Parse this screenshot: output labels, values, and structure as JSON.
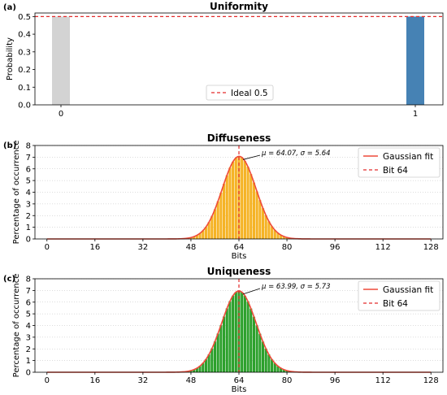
{
  "chart_data": [
    {
      "type": "bar",
      "panel_label": "(a)",
      "title": "Uniformity",
      "xlabel": "",
      "ylabel": "Probability",
      "categories": [
        "0",
        "1"
      ],
      "values": [
        0.5,
        0.5
      ],
      "bar_colors": [
        "#d3d3d3",
        "#4682b4"
      ],
      "ylim": [
        0,
        0.52
      ],
      "yticks": [
        "0.0",
        "0.1",
        "0.2",
        "0.3",
        "0.4",
        "0.5"
      ],
      "reference_line": {
        "value": 0.5,
        "label": "Ideal 0.5",
        "color": "#e32b2b",
        "style": "dashed"
      },
      "legend_position": "bottom-center",
      "grid": false
    },
    {
      "type": "bar",
      "panel_label": "(b)",
      "title": "Diffuseness",
      "xlabel": "Bits",
      "ylabel": "Percentage of occurrence",
      "bar_color": "#f5b325",
      "histogram": {
        "mean": 64.07,
        "std": 5.64,
        "x_from": 44,
        "x_to": 84
      },
      "xlim": [
        -4,
        132
      ],
      "ylim": [
        0,
        8
      ],
      "xticks": [
        "0",
        "16",
        "32",
        "48",
        "64",
        "80",
        "96",
        "112",
        "128"
      ],
      "yticks": [
        "0",
        "1",
        "2",
        "3",
        "4",
        "5",
        "6",
        "7",
        "8"
      ],
      "annotation": "μ = 64.07,  σ = 5.64",
      "fit_series": {
        "name": "Gaussian fit",
        "color": "#ee4a3a"
      },
      "vline": {
        "value": 64,
        "name": "Bit 64",
        "color": "#e32b2b"
      },
      "legend_position": "top-right",
      "grid": "horizontal dotted"
    },
    {
      "type": "bar",
      "panel_label": "(c)",
      "title": "Uniqueness",
      "xlabel": "Bits",
      "ylabel": "Percentage of occurrence",
      "bar_color": "#2ca02c",
      "histogram": {
        "mean": 63.99,
        "std": 5.73,
        "x_from": 44,
        "x_to": 84
      },
      "xlim": [
        -4,
        132
      ],
      "ylim": [
        0,
        8
      ],
      "xticks": [
        "0",
        "16",
        "32",
        "48",
        "64",
        "80",
        "96",
        "112",
        "128"
      ],
      "yticks": [
        "0",
        "1",
        "2",
        "3",
        "4",
        "5",
        "6",
        "7",
        "8"
      ],
      "annotation": "μ = 63.99,  σ = 5.73",
      "fit_series": {
        "name": "Gaussian fit",
        "color": "#ee4a3a"
      },
      "vline": {
        "value": 64,
        "name": "Bit 64",
        "color": "#e32b2b"
      },
      "legend_position": "top-right",
      "grid": "horizontal dotted"
    }
  ]
}
